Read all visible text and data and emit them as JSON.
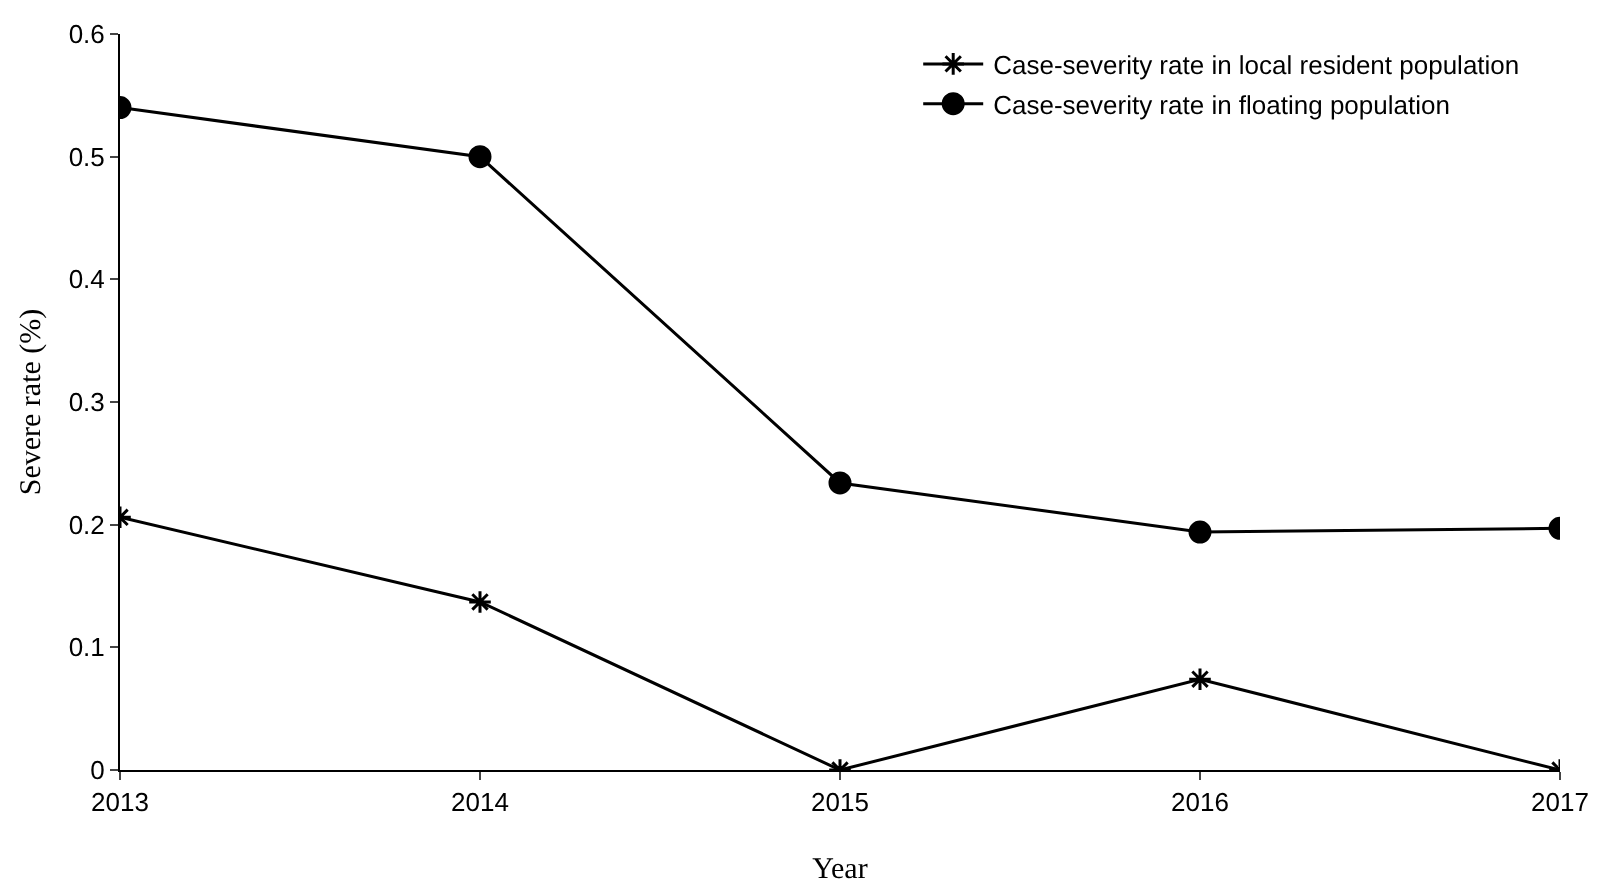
{
  "chart_data": {
    "type": "line",
    "xlabel": "Year",
    "ylabel": "Severe rate (%)",
    "x": [
      2013,
      2014,
      2015,
      2016,
      2017
    ],
    "xlim": [
      2013,
      2017
    ],
    "xticks": [
      2013,
      2014,
      2015,
      2016,
      2017
    ],
    "ylim": [
      0,
      0.6
    ],
    "yticks": [
      0,
      0.1,
      0.2,
      0.3,
      0.4,
      0.5,
      0.6
    ],
    "grid": false,
    "legend": "top right",
    "line_style": "solid",
    "series": [
      {
        "name": "Case-severity rate in local resident population",
        "color": "#000000",
        "marker": "cross",
        "values": [
          0.206,
          0.137,
          0,
          0.074,
          0
        ]
      },
      {
        "name": "Case-severity rate in floating population",
        "color": "#000000",
        "marker": "circle",
        "values": [
          0.54,
          0.5,
          0.234,
          0.194,
          0.197
        ]
      }
    ]
  }
}
